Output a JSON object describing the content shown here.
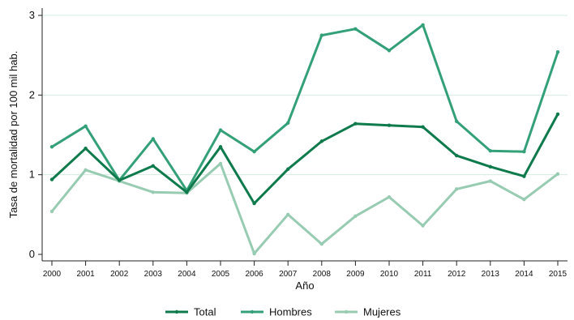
{
  "chart_data": {
    "type": "line",
    "xlabel": "Año",
    "ylabel": "Tasa de mortalidad por 100 mil hab.",
    "ylim": [
      0,
      3
    ],
    "yticks": [
      0,
      1,
      2,
      3
    ],
    "grid": "horizontal",
    "legend_position": "bottom",
    "categories": [
      "2000",
      "2001",
      "2002",
      "2003",
      "2004",
      "2005",
      "2006",
      "2007",
      "2008",
      "2009",
      "2010",
      "2011",
      "2012",
      "2013",
      "2014",
      "2015"
    ],
    "series": [
      {
        "name": "Total",
        "color": "#0f7a4c",
        "values": [
          0.94,
          1.33,
          0.93,
          1.11,
          0.78,
          1.35,
          0.64,
          1.07,
          1.42,
          1.64,
          1.62,
          1.6,
          1.24,
          1.1,
          0.98,
          1.76
        ]
      },
      {
        "name": "Hombres",
        "color": "#34a078",
        "values": [
          1.35,
          1.61,
          0.93,
          1.45,
          0.8,
          1.56,
          1.29,
          1.65,
          2.75,
          2.83,
          2.56,
          2.88,
          1.67,
          1.3,
          1.29,
          2.54
        ]
      },
      {
        "name": "Mujeres",
        "color": "#98ccb2",
        "values": [
          0.54,
          1.06,
          0.92,
          0.78,
          0.77,
          1.14,
          0.01,
          0.5,
          0.13,
          0.48,
          0.72,
          0.36,
          0.82,
          0.92,
          0.69,
          1.01
        ]
      }
    ]
  }
}
